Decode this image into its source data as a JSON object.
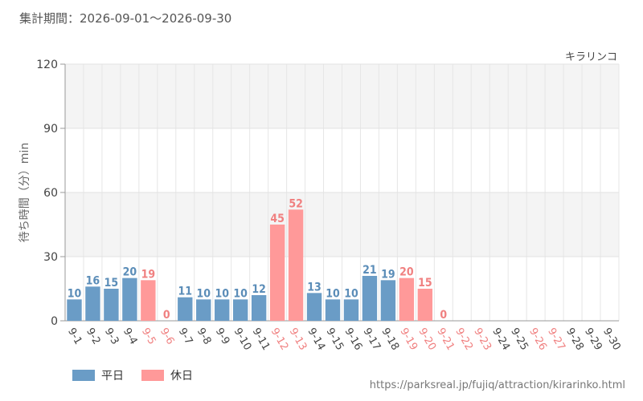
{
  "period_label": "集計期間：2026-09-01～2026-09-30",
  "source_url": "https://parksreal.jp/fujiq/attraction/kirarinko.html",
  "colors": {
    "weekday": "#6a9cc6",
    "holiday": "#ff9999",
    "weekday_label": "#5b8db8",
    "holiday_label": "#f08080"
  },
  "legend": [
    {
      "label": "平日",
      "color": "#6a9cc6"
    },
    {
      "label": "休日",
      "color": "#ff9999"
    }
  ],
  "chart_data": {
    "type": "bar",
    "title": "キラリンコ",
    "ylabel": "待ち時間（分）min",
    "xlabel": "",
    "ylim": [
      0,
      120
    ],
    "yticks": [
      0,
      30,
      60,
      90,
      120
    ],
    "grid": true,
    "legend_position": "bottom-left",
    "categories": [
      "9-1",
      "9-2",
      "9-3",
      "9-4",
      "9-5",
      "9-6",
      "9-7",
      "9-8",
      "9-9",
      "9-10",
      "9-11",
      "9-12",
      "9-13",
      "9-14",
      "9-15",
      "9-16",
      "9-17",
      "9-18",
      "9-19",
      "9-20",
      "9-21",
      "9-22",
      "9-23",
      "9-24",
      "9-25",
      "9-26",
      "9-27",
      "9-28",
      "9-29",
      "9-30"
    ],
    "values": [
      10,
      16,
      15,
      20,
      19,
      0,
      11,
      10,
      10,
      10,
      12,
      45,
      52,
      13,
      10,
      10,
      21,
      19,
      20,
      15,
      0,
      null,
      null,
      null,
      null,
      null,
      null,
      null,
      null,
      null
    ],
    "day_type": [
      "weekday",
      "weekday",
      "weekday",
      "weekday",
      "holiday",
      "holiday",
      "weekday",
      "weekday",
      "weekday",
      "weekday",
      "weekday",
      "holiday",
      "holiday",
      "weekday",
      "weekday",
      "weekday",
      "weekday",
      "weekday",
      "holiday",
      "holiday",
      "holiday",
      "holiday",
      "holiday",
      "weekday",
      "weekday",
      "holiday",
      "holiday",
      "weekday",
      "weekday",
      "weekday"
    ]
  }
}
